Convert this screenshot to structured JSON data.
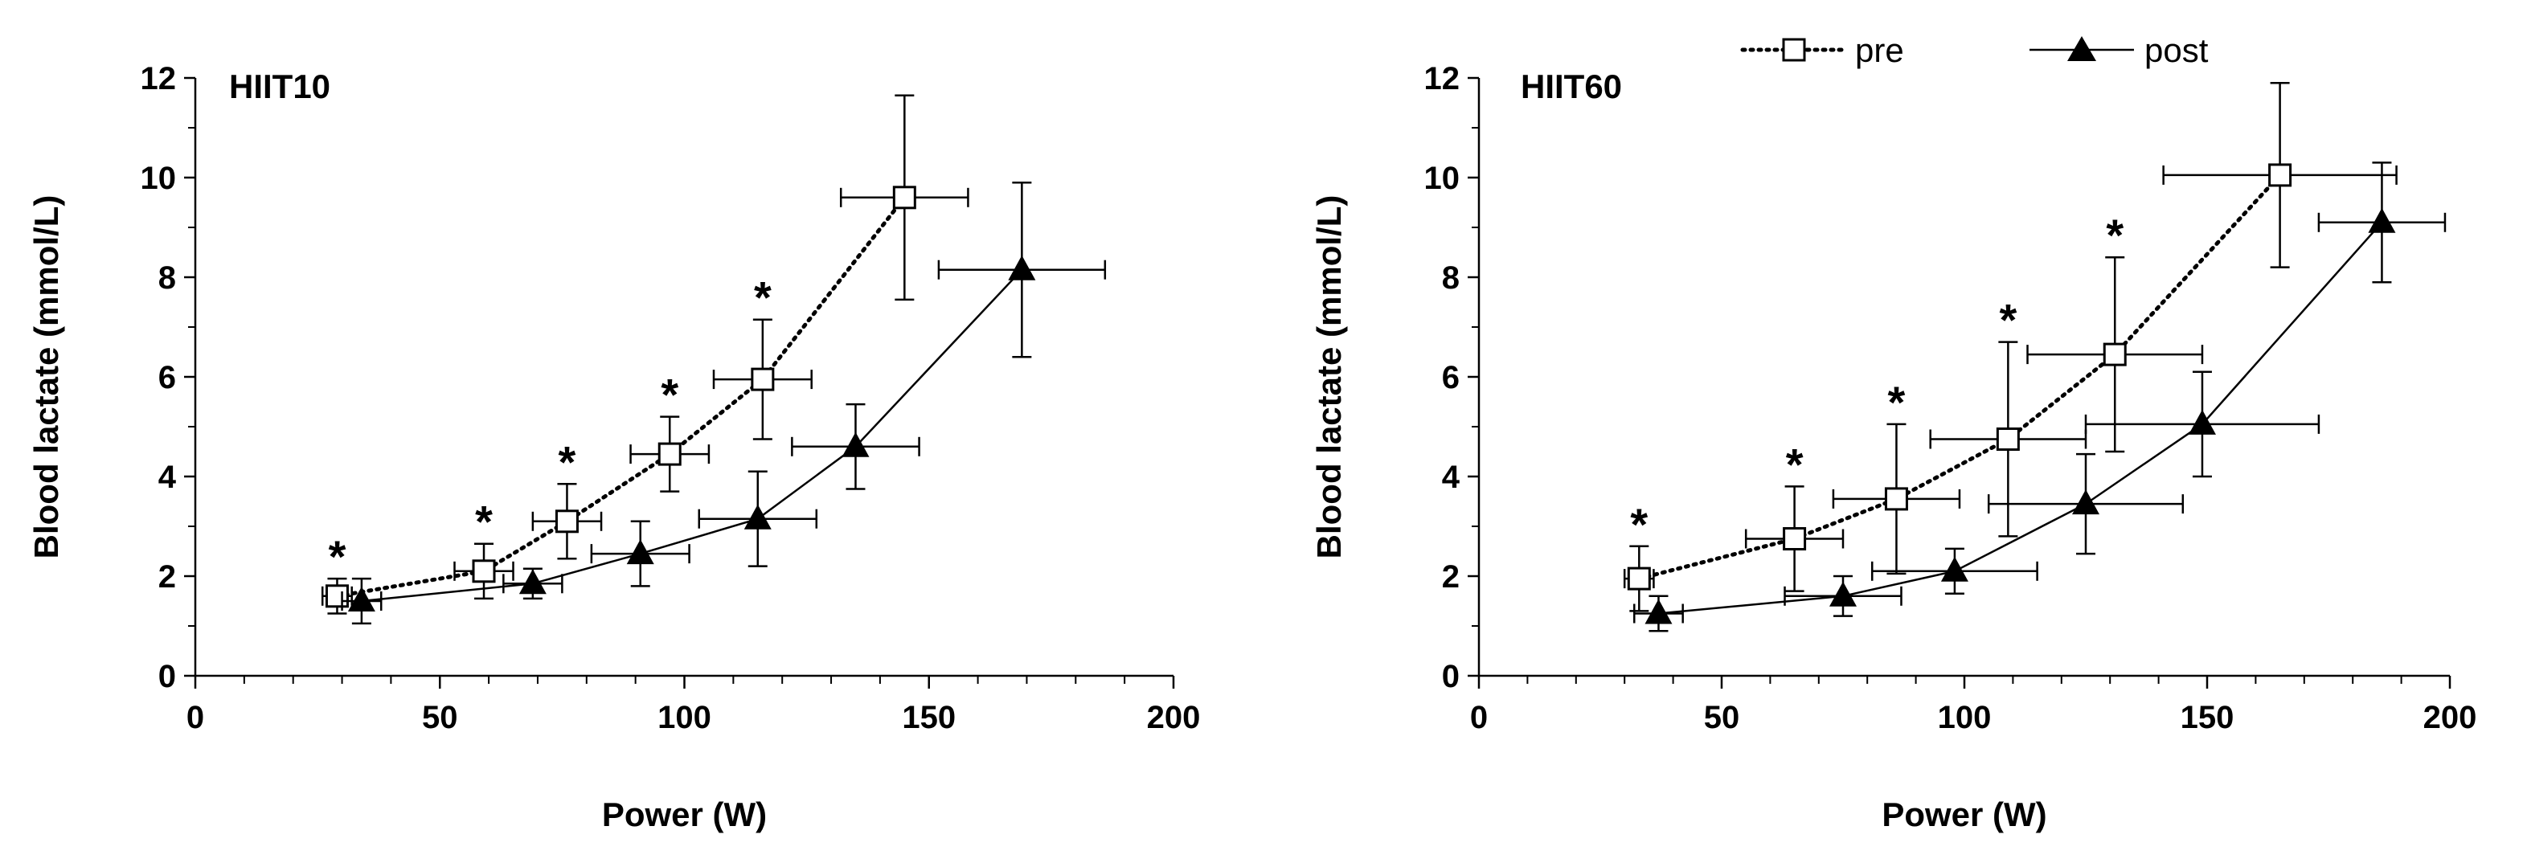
{
  "legend": [
    {
      "name": "pre",
      "style": "dotted",
      "marker": "open-square"
    },
    {
      "name": "post",
      "style": "solid",
      "marker": "filled-triangle"
    }
  ],
  "chart_data": [
    {
      "type": "scatter",
      "title": "HIIT10",
      "xlabel": "Power (W)",
      "ylabel": "Blood lactate (mmol/L)",
      "xlim": [
        0,
        200
      ],
      "ylim": [
        0,
        12
      ],
      "xticks": [
        0,
        50,
        100,
        150,
        200
      ],
      "yticks": [
        0,
        2,
        4,
        6,
        8,
        10,
        12
      ],
      "grid": false,
      "significance_marker": "*",
      "series": [
        {
          "name": "pre",
          "color": "#000000",
          "x": [
            29,
            59,
            76,
            97,
            116,
            145
          ],
          "y": [
            1.6,
            2.1,
            3.1,
            4.45,
            5.95,
            9.6
          ],
          "x_err": [
            3,
            6,
            7,
            8,
            10,
            13
          ],
          "y_err": [
            0.35,
            0.55,
            0.75,
            0.75,
            1.2,
            2.05
          ],
          "significant": [
            true,
            true,
            true,
            true,
            true,
            false
          ]
        },
        {
          "name": "post",
          "color": "#000000",
          "x": [
            34,
            69,
            91,
            115,
            135,
            169
          ],
          "y": [
            1.5,
            1.85,
            2.45,
            3.15,
            4.6,
            8.15
          ],
          "x_err": [
            4,
            6,
            10,
            12,
            13,
            17
          ],
          "y_err": [
            0.45,
            0.3,
            0.65,
            0.95,
            0.85,
            1.75
          ],
          "significant": [
            false,
            false,
            false,
            false,
            false,
            false
          ]
        }
      ]
    },
    {
      "type": "scatter",
      "title": "HIIT60",
      "xlabel": "Power (W)",
      "ylabel": "Blood lactate (mmol/L)",
      "xlim": [
        0,
        200
      ],
      "ylim": [
        0,
        12
      ],
      "xticks": [
        0,
        50,
        100,
        150,
        200
      ],
      "yticks": [
        0,
        2,
        4,
        6,
        8,
        10,
        12
      ],
      "grid": false,
      "significance_marker": "*",
      "series": [
        {
          "name": "pre",
          "color": "#000000",
          "x": [
            33,
            65,
            86,
            109,
            131,
            165
          ],
          "y": [
            1.95,
            2.75,
            3.55,
            4.75,
            6.45,
            10.05
          ],
          "x_err": [
            3,
            10,
            13,
            16,
            18,
            24
          ],
          "y_err": [
            0.65,
            1.05,
            1.5,
            1.95,
            1.95,
            1.85
          ],
          "significant": [
            true,
            true,
            true,
            true,
            true,
            false
          ]
        },
        {
          "name": "post",
          "color": "#000000",
          "x": [
            37,
            75,
            98,
            125,
            149,
            186
          ],
          "y": [
            1.25,
            1.6,
            2.1,
            3.45,
            5.05,
            9.1
          ],
          "x_err": [
            5,
            12,
            17,
            20,
            24,
            13
          ],
          "y_err": [
            0.35,
            0.4,
            0.45,
            1.0,
            1.05,
            1.2
          ],
          "significant": [
            false,
            false,
            false,
            false,
            false,
            false
          ]
        }
      ]
    }
  ]
}
